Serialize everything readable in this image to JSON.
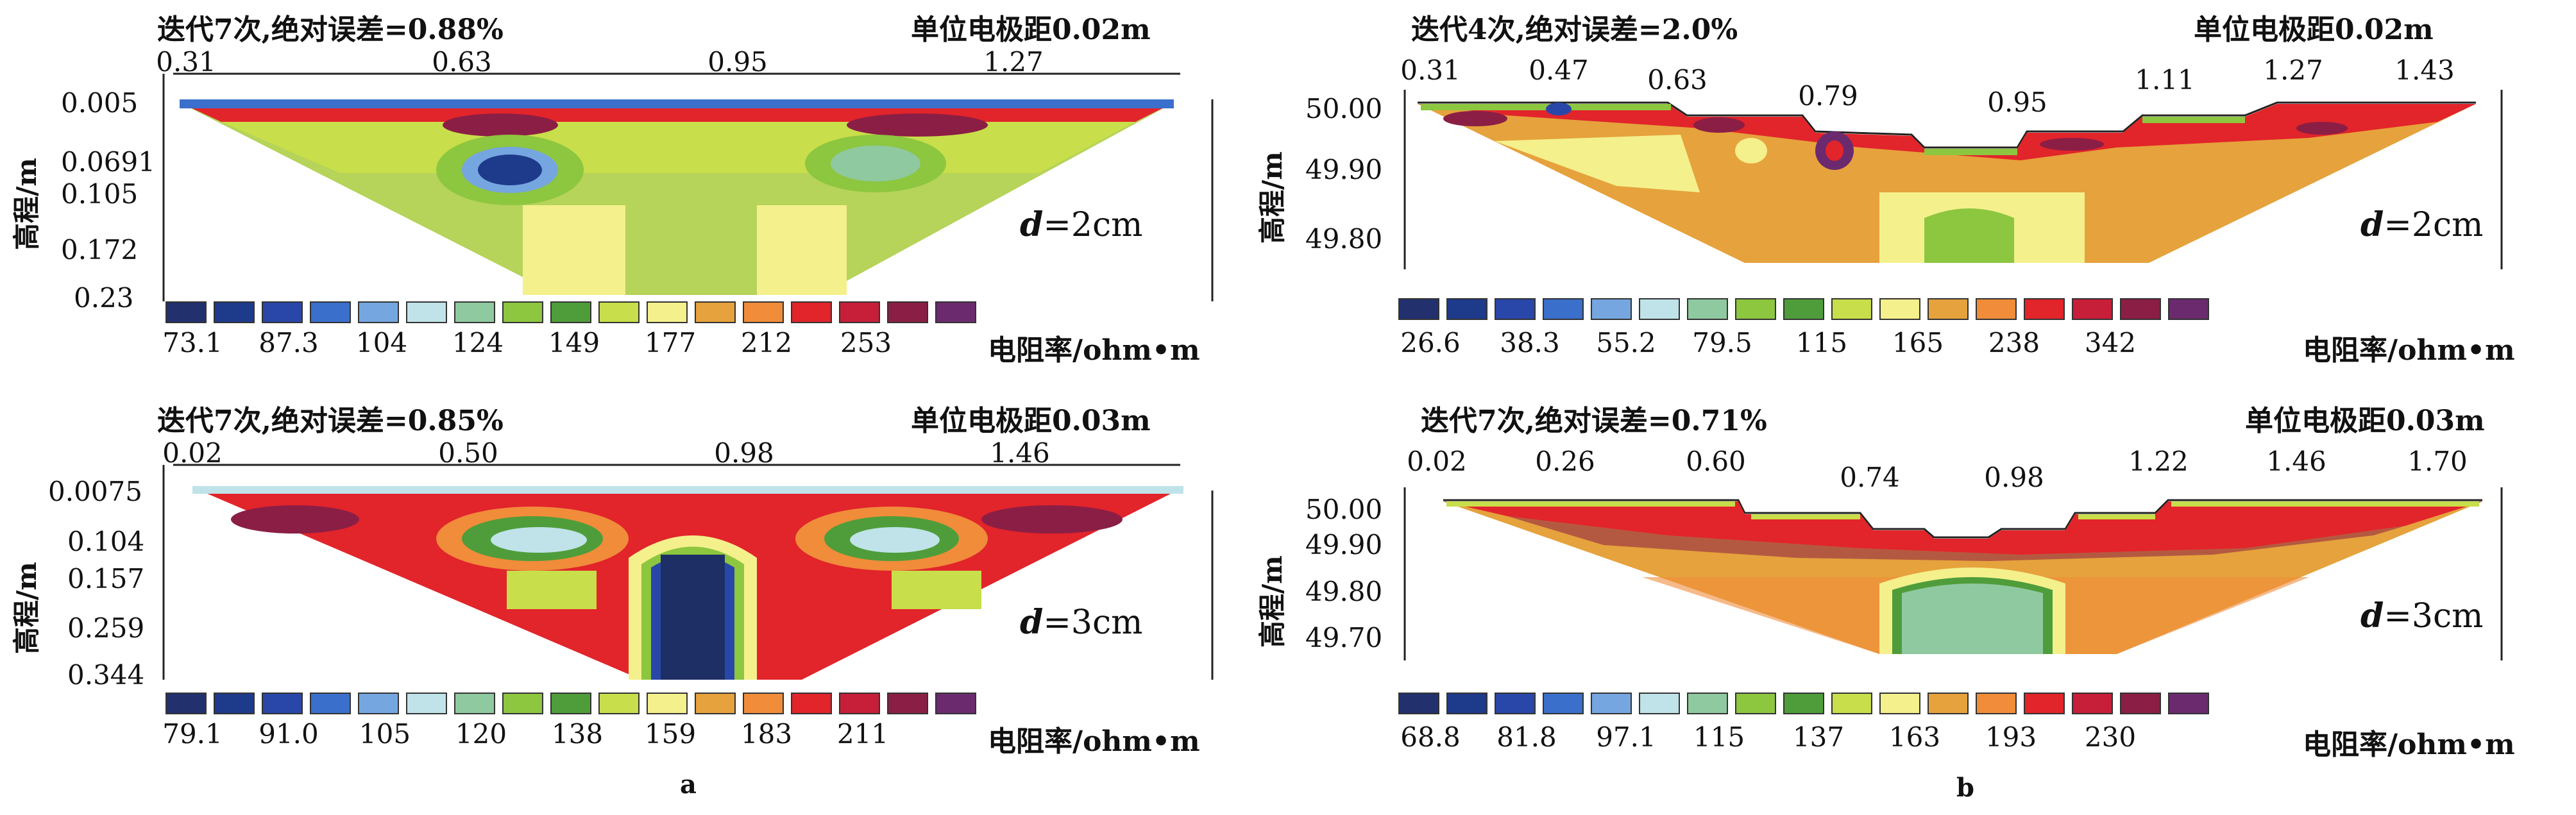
{
  "labels": {
    "a": "a",
    "b": "b"
  },
  "colors": {
    "scale": [
      "#22306e",
      "#1e3a8a",
      "#2947a8",
      "#3a6fcb",
      "#75a6e0",
      "#bfe3e8",
      "#8fc9a0",
      "#8dc63f",
      "#4f9d3a",
      "#c8de4a",
      "#f4f08c",
      "#e6a23c",
      "#f08c3a",
      "#e2242b",
      "#c71e3a",
      "#8b1e45",
      "#6b2a6e"
    ]
  },
  "chart_data": [
    {
      "type": "heatmap",
      "panel": "a-top",
      "title": "迭代7次,绝对误差=0.88%",
      "unit_spacing": "单位电极距0.02m",
      "x_ticks": [
        "0.31",
        "0.63",
        "0.95",
        "1.27"
      ],
      "x_values": [
        0.31,
        0.63,
        0.95,
        1.27
      ],
      "xlim": [
        0.31,
        1.43
      ],
      "ylabel": "高程/m",
      "y_ticks": [
        "0.005",
        "0.0691",
        "0.105",
        "0.172",
        "0.23"
      ],
      "y_values": [
        0.005,
        0.0691,
        0.105,
        0.172,
        0.23
      ],
      "ylim": [
        0.005,
        0.23
      ],
      "y_inverted": true,
      "depth_label": "=2cm",
      "depth_symbol": "d",
      "legend_title": "电阻率/ohm•m",
      "legend_values": [
        "73.1",
        "87.3",
        "104",
        "124",
        "149",
        "177",
        "212",
        "253"
      ]
    },
    {
      "type": "heatmap",
      "panel": "a-bottom",
      "title": "迭代7次,绝对误差=0.85%",
      "unit_spacing": "单位电极距0.03m",
      "x_ticks": [
        "0.02",
        "0.50",
        "0.98",
        "1.46"
      ],
      "x_values": [
        0.02,
        0.5,
        0.98,
        1.46
      ],
      "xlim": [
        0.02,
        1.8
      ],
      "ylabel": "高程/m",
      "y_ticks": [
        "0.0075",
        "0.104",
        "0.157",
        "0.259",
        "0.344"
      ],
      "y_values": [
        0.0075,
        0.104,
        0.157,
        0.259,
        0.344
      ],
      "ylim": [
        0.0075,
        0.344
      ],
      "y_inverted": true,
      "depth_label": "=3cm",
      "depth_symbol": "d",
      "legend_title": "电阻率/ohm•m",
      "legend_values": [
        "79.1",
        "91.0",
        "105",
        "120",
        "138",
        "159",
        "183",
        "211"
      ]
    },
    {
      "type": "heatmap",
      "panel": "b-top",
      "title": "迭代4次,绝对误差=2.0%",
      "unit_spacing": "单位电极距0.02m",
      "x_ticks": [
        "0.31",
        "0.47",
        "0.63",
        "0.79",
        "0.95",
        "1.11",
        "1.27",
        "1.43"
      ],
      "x_values": [
        0.31,
        0.47,
        0.63,
        0.79,
        0.95,
        1.11,
        1.27,
        1.43
      ],
      "xlim": [
        0.31,
        1.5
      ],
      "ylabel": "高程/m",
      "y_ticks": [
        "50.00",
        "49.90",
        "49.80"
      ],
      "y_values": [
        50.0,
        49.9,
        49.8
      ],
      "ylim": [
        49.76,
        50.0
      ],
      "y_inverted": false,
      "depth_label": "=2cm",
      "depth_symbol": "d",
      "legend_title": "电阻率/ohm•m",
      "legend_values": [
        "26.6",
        "38.3",
        "55.2",
        "79.5",
        "115",
        "165",
        "238",
        "342"
      ]
    },
    {
      "type": "heatmap",
      "panel": "b-bottom",
      "title": "迭代7次,绝对误差=0.71%",
      "unit_spacing": "单位电极距0.03m",
      "x_ticks": [
        "0.02",
        "0.26",
        "0.60",
        "0.74",
        "0.98",
        "1.22",
        "1.46",
        "1.70"
      ],
      "x_values": [
        0.02,
        0.26,
        0.6,
        0.74,
        0.98,
        1.22,
        1.46,
        1.7
      ],
      "xlim": [
        0.02,
        1.8
      ],
      "ylabel": "高程/m",
      "y_ticks": [
        "50.00",
        "49.90",
        "49.80",
        "49.70"
      ],
      "y_values": [
        50.0,
        49.9,
        49.8,
        49.7
      ],
      "ylim": [
        49.66,
        50.0
      ],
      "y_inverted": false,
      "depth_label": "=3cm",
      "depth_symbol": "d",
      "legend_title": "电阻率/ohm•m",
      "legend_values": [
        "68.8",
        "81.8",
        "97.1",
        "115",
        "137",
        "163",
        "193",
        "230"
      ]
    }
  ]
}
